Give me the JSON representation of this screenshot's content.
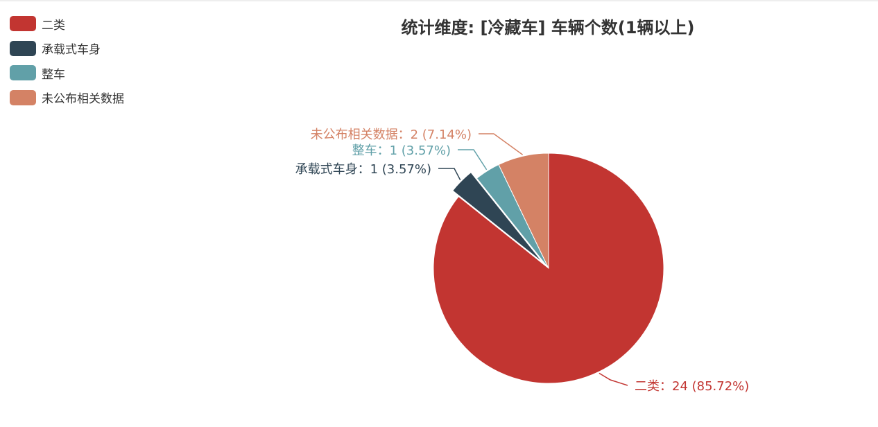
{
  "chart_data": {
    "type": "pie",
    "title": "统计维度: [冷藏车] 车辆个数(1辆以上)",
    "legend_position": "top-left",
    "slices": [
      {
        "name": "二类",
        "value": 24,
        "percent_label": "85.72%",
        "color": "#c23531",
        "exploded": false
      },
      {
        "name": "承载式车身",
        "value": 1,
        "percent_label": "3.57%",
        "color": "#2f4554",
        "exploded": true
      },
      {
        "name": "整车",
        "value": 1,
        "percent_label": "3.57%",
        "color": "#61a0a8",
        "exploded": false
      },
      {
        "name": "未公布相关数据",
        "value": 2,
        "percent_label": "7.14%",
        "color": "#d48265",
        "exploded": false
      }
    ]
  }
}
